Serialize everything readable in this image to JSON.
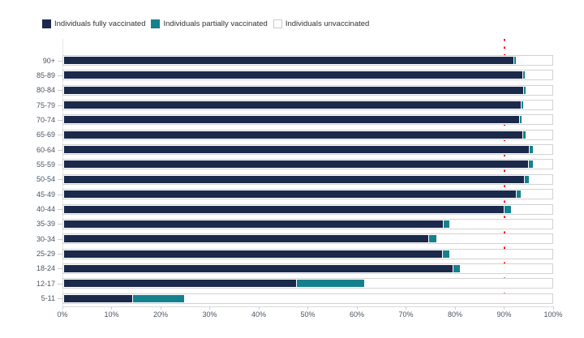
{
  "legend": {
    "items": [
      {
        "label": "Individuals fully vaccinated",
        "color": "#1b2a4b",
        "swatch": "filled"
      },
      {
        "label": "Individuals partially vaccinated",
        "color": "#15818e",
        "swatch": "filled"
      },
      {
        "label": "Individuals unvaccinated",
        "color": "#ffffff",
        "swatch": "outlined"
      }
    ]
  },
  "chart_data": {
    "type": "bar",
    "orientation": "horizontal",
    "stacked": true,
    "grid": false,
    "legend_position": "top-left",
    "categories": [
      "90+",
      "85-89",
      "80-84",
      "75-79",
      "70-74",
      "65-69",
      "60-64",
      "55-59",
      "50-54",
      "45-49",
      "40-44",
      "35-39",
      "30-34",
      "25-29",
      "18-24",
      "12-17",
      "5-11"
    ],
    "series": [
      {
        "name": "Individuals fully vaccinated",
        "color": "#1b2a4b",
        "values": [
          92.2,
          94.0,
          94.2,
          93.6,
          93.4,
          94.0,
          95.4,
          95.2,
          94.4,
          92.6,
          90.2,
          77.7,
          74.7,
          77.5,
          79.7,
          47.6,
          13.9
        ]
      },
      {
        "name": "Individuals partially vaccinated",
        "color": "#15818e",
        "values": [
          0.5,
          0.5,
          0.5,
          0.5,
          0.5,
          0.6,
          0.8,
          0.9,
          1.0,
          1.0,
          1.5,
          1.4,
          1.6,
          1.5,
          1.5,
          13.9,
          10.7
        ]
      },
      {
        "name": "Individuals unvaccinated",
        "color": "#ffffff",
        "values": [
          7.3,
          5.5,
          5.3,
          5.9,
          6.1,
          5.4,
          3.8,
          3.9,
          4.6,
          6.4,
          8.3,
          20.9,
          23.7,
          21.0,
          18.8,
          38.5,
          75.4
        ]
      }
    ],
    "x_ticks": [
      "0%",
      "10%",
      "20%",
      "30%",
      "40%",
      "50%",
      "60%",
      "70%",
      "80%",
      "90%",
      "100%"
    ],
    "xlim": [
      0,
      100
    ],
    "xlabel": "",
    "ylabel": "",
    "title": "",
    "reference_line": {
      "value": 90,
      "orientation": "vertical",
      "color": "#ff0000",
      "style": "dotted"
    }
  },
  "colors": {
    "fully_vaccinated": "#1b2a4b",
    "partially_vaccinated": "#15818e",
    "unvaccinated": "#ffffff",
    "bar_border": "#d2d2d2",
    "axis_text": "#4a5563",
    "reference_line": "#ff0000",
    "background": "#ffffff"
  }
}
